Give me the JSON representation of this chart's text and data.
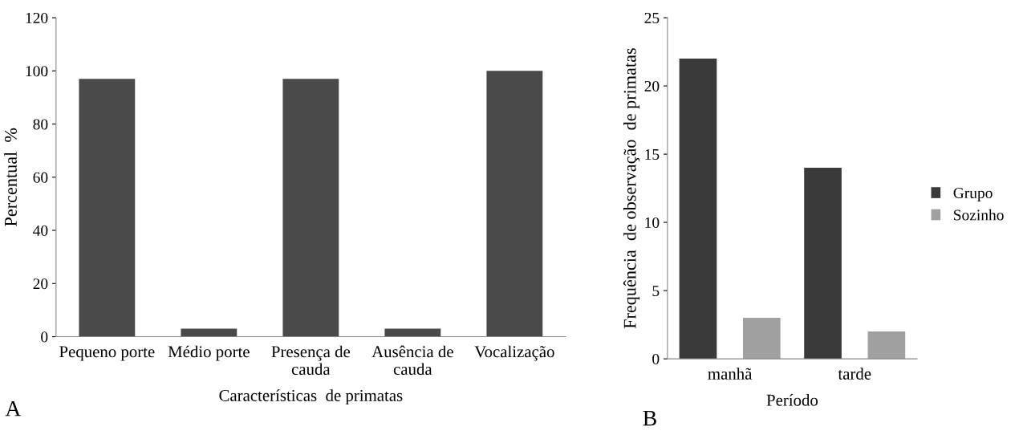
{
  "chart_data": [
    {
      "type": "bar",
      "ylabel": "Percentual  %",
      "xlabel": "Características  de primatas",
      "categories": [
        "Pequeno porte",
        "Médio porte",
        "Presença de\ncauda",
        "Ausência de\ncauda",
        "Vocalização"
      ],
      "values": [
        97,
        3,
        97,
        3,
        100
      ],
      "color": "#4a4a4a",
      "ylim": [
        0,
        120
      ],
      "yticks": [
        0,
        20,
        40,
        60,
        80,
        100,
        120
      ],
      "grid": false,
      "legend": false,
      "annotations": [
        "A"
      ]
    },
    {
      "type": "bar",
      "ylabel": "Frequência  de observação  de primatas",
      "xlabel": "Período",
      "categories": [
        "manhã",
        "tarde"
      ],
      "series": [
        {
          "name": "Grupo",
          "color": "#3a3a3a",
          "values": [
            22,
            14
          ]
        },
        {
          "name": "Sozinho",
          "color": "#a0a0a0",
          "values": [
            3,
            2
          ]
        }
      ],
      "ylim": [
        0,
        25
      ],
      "yticks": [
        0,
        5,
        10,
        15,
        20,
        25
      ],
      "grid": false,
      "legend": "right",
      "annotations": [
        "B"
      ]
    }
  ]
}
